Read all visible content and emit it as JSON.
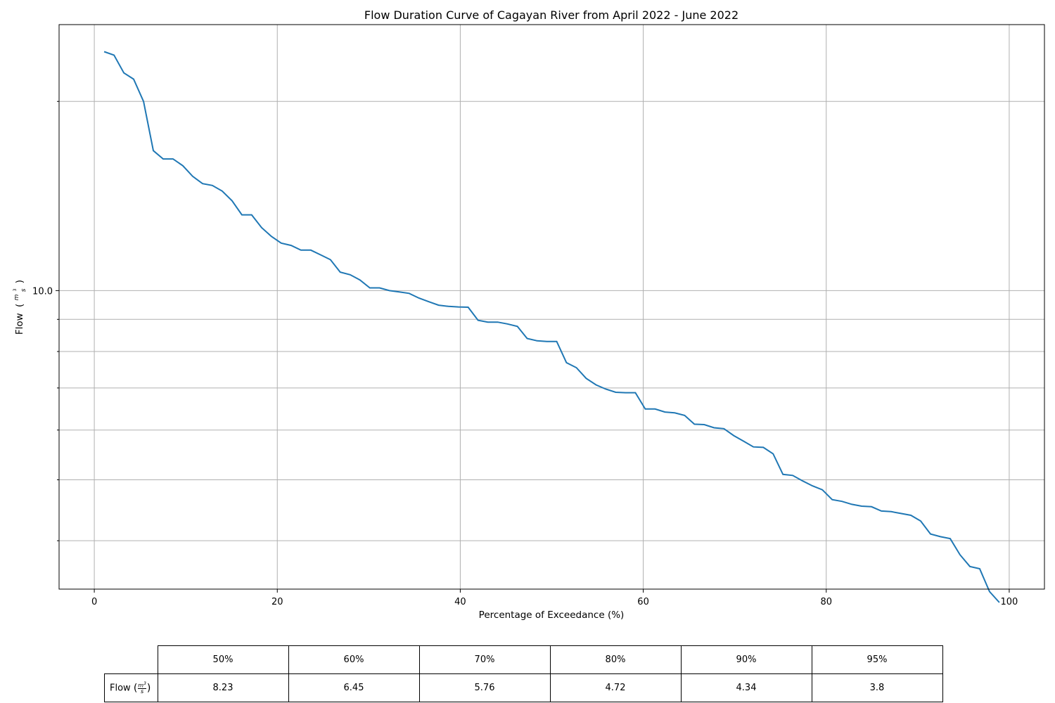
{
  "chart_data": {
    "type": "line",
    "title": "Flow Duration Curve of Cagayan River from April 2022 - June 2022",
    "xlabel": "Percentage of Exceedance (%)",
    "ylabel": "Flow",
    "ylabel_unit_num": "m",
    "ylabel_unit_sup": "3",
    "ylabel_unit_den": "s",
    "yscale": "log",
    "xlim": [
      -3.85,
      103.85
    ],
    "ylim": [
      3.35,
      26.5
    ],
    "xticks": [
      0,
      20,
      40,
      60,
      80,
      100
    ],
    "xtick_labels": [
      "0",
      "20",
      "40",
      "60",
      "80",
      "100"
    ],
    "yticks_labeled": [
      10.0
    ],
    "ytick_labels": [
      "10.0"
    ],
    "yticks_minor": [
      4,
      5,
      6,
      7,
      8,
      9,
      20
    ],
    "grid": true,
    "series": [
      {
        "name": "Flow",
        "color": "#1f77b4",
        "x": [
          1.08,
          2.15,
          3.23,
          4.3,
          5.38,
          6.45,
          7.53,
          8.6,
          9.68,
          10.75,
          11.83,
          12.9,
          13.98,
          15.05,
          16.13,
          17.2,
          18.28,
          19.35,
          20.43,
          21.51,
          22.58,
          23.66,
          24.73,
          25.81,
          26.88,
          27.96,
          29.03,
          30.11,
          31.18,
          32.26,
          33.33,
          34.41,
          35.48,
          36.56,
          37.63,
          38.71,
          39.78,
          40.86,
          41.94,
          43.01,
          44.09,
          45.16,
          46.24,
          47.31,
          48.39,
          49.46,
          50.54,
          51.61,
          52.69,
          53.76,
          54.84,
          55.91,
          56.99,
          58.06,
          59.14,
          60.22,
          61.29,
          62.37,
          63.44,
          64.52,
          65.59,
          66.67,
          67.74,
          68.82,
          69.89,
          70.97,
          72.04,
          73.12,
          74.19,
          75.27,
          76.34,
          77.42,
          78.49,
          79.57,
          80.65,
          81.72,
          82.8,
          83.87,
          84.95,
          86.02,
          87.1,
          88.17,
          89.25,
          90.32,
          91.4,
          92.47,
          93.55,
          94.62,
          95.7,
          96.77,
          97.85,
          98.92
        ],
        "y": [
          24.0,
          23.7,
          22.2,
          21.7,
          20.0,
          16.7,
          16.2,
          16.2,
          15.8,
          15.2,
          14.8,
          14.7,
          14.4,
          13.9,
          13.2,
          13.2,
          12.6,
          12.2,
          11.9,
          11.8,
          11.6,
          11.6,
          11.4,
          11.2,
          10.7,
          10.6,
          10.4,
          10.1,
          10.1,
          10.0,
          9.95,
          9.9,
          9.73,
          9.6,
          9.48,
          9.44,
          9.42,
          9.41,
          8.97,
          8.91,
          8.91,
          8.85,
          8.77,
          8.39,
          8.32,
          8.3,
          8.3,
          7.68,
          7.54,
          7.25,
          7.08,
          6.97,
          6.89,
          6.88,
          6.88,
          6.48,
          6.48,
          6.41,
          6.39,
          6.33,
          6.13,
          6.12,
          6.05,
          6.03,
          5.88,
          5.76,
          5.64,
          5.63,
          5.5,
          5.1,
          5.08,
          4.98,
          4.89,
          4.82,
          4.65,
          4.62,
          4.57,
          4.54,
          4.53,
          4.46,
          4.45,
          4.42,
          4.39,
          4.3,
          4.1,
          4.06,
          4.03,
          3.8,
          3.64,
          3.61,
          3.32,
          3.19
        ]
      }
    ]
  },
  "table": {
    "columns": [
      "50%",
      "60%",
      "70%",
      "80%",
      "90%",
      "95%"
    ],
    "row_label": "Flow",
    "values": [
      "8.23",
      "6.45",
      "5.76",
      "4.72",
      "4.34",
      "3.8"
    ]
  }
}
